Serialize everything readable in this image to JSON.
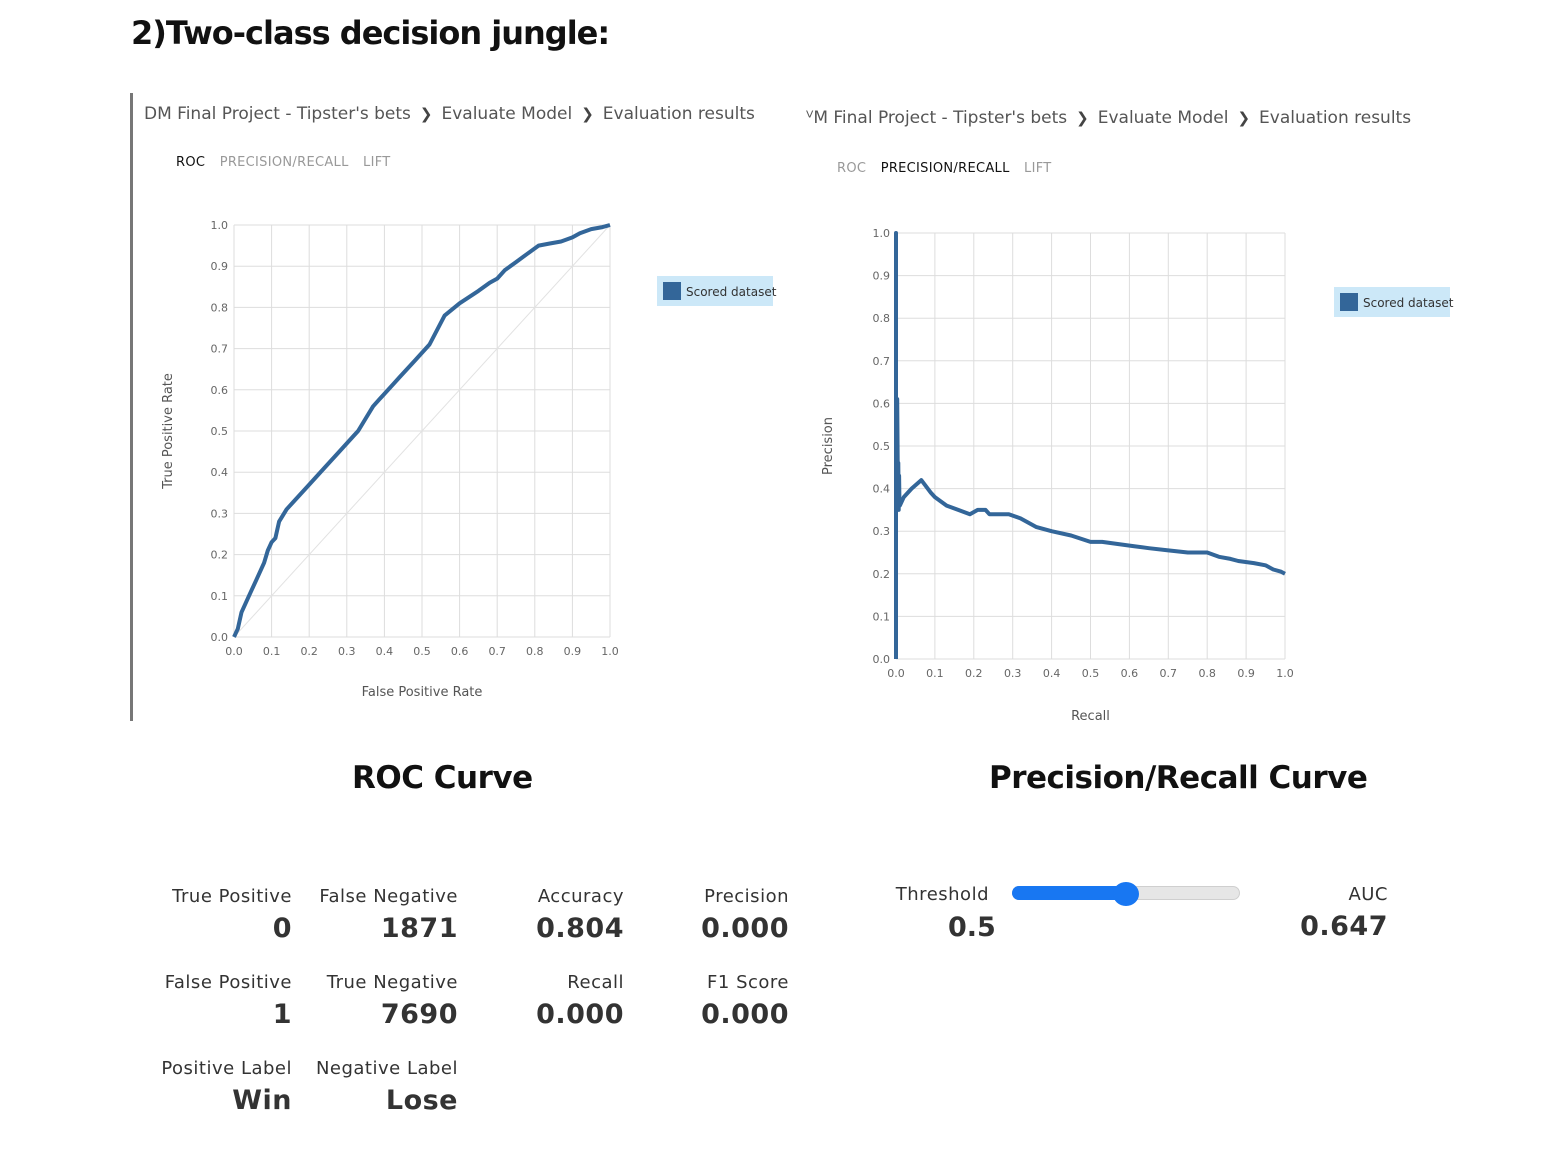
{
  "heading": "2)Two-class decision jungle:",
  "left_panel": {
    "breadcrumb": [
      "DM Final Project - Tipster's bets",
      "Evaluate Model",
      "Evaluation results"
    ],
    "tabs": [
      "ROC",
      "PRECISION/RECALL",
      "LIFT"
    ],
    "active_tab": "ROC",
    "caption": "ROC Curve"
  },
  "right_panel": {
    "breadcrumb": [
      "ⱽM Final Project - Tipster's bets",
      "Evaluate Model",
      "Evaluation results"
    ],
    "tabs": [
      "ROC",
      "PRECISION/RECALL",
      "LIFT"
    ],
    "active_tab": "PRECISION/RECALL",
    "caption": "Precision/Recall Curve"
  },
  "colors": {
    "series": "#336699",
    "legend_bg": "#cce8f8",
    "slider": "#1877f2",
    "grid": "#dddddd"
  },
  "chart_data": [
    {
      "type": "line",
      "title": "",
      "xlabel": "False Positive Rate",
      "ylabel": "True Positive Rate",
      "xlim": [
        0,
        1
      ],
      "ylim": [
        0,
        1
      ],
      "xticks": [
        "0.0",
        "0.1",
        "0.2",
        "0.3",
        "0.4",
        "0.5",
        "0.6",
        "0.7",
        "0.8",
        "0.9",
        "1.0"
      ],
      "yticks": [
        "0.0",
        "0.1",
        "0.2",
        "0.3",
        "0.4",
        "0.5",
        "0.6",
        "0.7",
        "0.8",
        "0.9",
        "1.0"
      ],
      "grid": true,
      "legend_placement": "right",
      "reference_diagonal": true,
      "series": [
        {
          "name": "Scored dataset",
          "x": [
            0,
            0.01,
            0.02,
            0.04,
            0.06,
            0.08,
            0.09,
            0.1,
            0.11,
            0.12,
            0.14,
            0.16,
            0.2,
            0.24,
            0.28,
            0.32,
            0.33,
            0.35,
            0.37,
            0.39,
            0.4,
            0.44,
            0.48,
            0.52,
            0.56,
            0.6,
            0.65,
            0.68,
            0.7,
            0.72,
            0.75,
            0.78,
            0.81,
            0.84,
            0.87,
            0.9,
            0.92,
            0.95,
            0.98,
            1.0
          ],
          "y": [
            0,
            0.02,
            0.06,
            0.1,
            0.14,
            0.18,
            0.21,
            0.23,
            0.24,
            0.28,
            0.31,
            0.33,
            0.37,
            0.41,
            0.45,
            0.49,
            0.5,
            0.53,
            0.56,
            0.58,
            0.59,
            0.63,
            0.67,
            0.71,
            0.78,
            0.81,
            0.84,
            0.86,
            0.87,
            0.89,
            0.91,
            0.93,
            0.95,
            0.955,
            0.96,
            0.97,
            0.98,
            0.99,
            0.995,
            1.0
          ]
        }
      ]
    },
    {
      "type": "line",
      "title": "",
      "xlabel": "Recall",
      "ylabel": "Precision",
      "xlim": [
        0,
        1
      ],
      "ylim": [
        0,
        1
      ],
      "xticks": [
        "0.0",
        "0.1",
        "0.2",
        "0.3",
        "0.4",
        "0.5",
        "0.6",
        "0.7",
        "0.8",
        "0.9",
        "1.0"
      ],
      "yticks": [
        "0.0",
        "0.1",
        "0.2",
        "0.3",
        "0.4",
        "0.5",
        "0.6",
        "0.7",
        "0.8",
        "0.9",
        "1.0"
      ],
      "grid": true,
      "legend_placement": "right",
      "series": [
        {
          "name": "Scored dataset",
          "x": [
            0,
            0,
            0,
            0.003,
            0.005,
            0.006,
            0.007,
            0.008,
            0.009,
            0.01,
            0.02,
            0.04,
            0.065,
            0.09,
            0.1,
            0.13,
            0.16,
            0.19,
            0.21,
            0.23,
            0.24,
            0.27,
            0.29,
            0.32,
            0.36,
            0.4,
            0.45,
            0.5,
            0.53,
            0.57,
            0.61,
            0.65,
            0.7,
            0.75,
            0.78,
            0.8,
            0.83,
            0.86,
            0.88,
            0.92,
            0.95,
            0.97,
            0.99,
            1.0
          ],
          "y": [
            0,
            1.0,
            0.36,
            0.61,
            0.4,
            0.46,
            0.35,
            0.43,
            0.36,
            0.36,
            0.38,
            0.4,
            0.42,
            0.39,
            0.38,
            0.36,
            0.35,
            0.34,
            0.35,
            0.35,
            0.34,
            0.34,
            0.34,
            0.33,
            0.31,
            0.3,
            0.29,
            0.275,
            0.275,
            0.27,
            0.265,
            0.26,
            0.255,
            0.25,
            0.25,
            0.25,
            0.24,
            0.235,
            0.23,
            0.225,
            0.22,
            0.21,
            0.205,
            0.2
          ]
        }
      ]
    }
  ],
  "metrics": {
    "true_positive": {
      "label": "True Positive",
      "value": "0"
    },
    "false_negative": {
      "label": "False Negative",
      "value": "1871"
    },
    "false_positive": {
      "label": "False Positive",
      "value": "1"
    },
    "true_negative": {
      "label": "True Negative",
      "value": "7690"
    },
    "positive_label": {
      "label": "Positive Label",
      "value": "Win"
    },
    "negative_label": {
      "label": "Negative Label",
      "value": "Lose"
    },
    "accuracy": {
      "label": "Accuracy",
      "value": "0.804"
    },
    "recall": {
      "label": "Recall",
      "value": "0.000"
    },
    "precision": {
      "label": "Precision",
      "value": "0.000"
    },
    "f1_score": {
      "label": "F1 Score",
      "value": "0.000"
    },
    "threshold": {
      "label": "Threshold",
      "value": "0.5",
      "slider_fraction": 0.5
    },
    "auc": {
      "label": "AUC",
      "value": "0.647"
    }
  }
}
